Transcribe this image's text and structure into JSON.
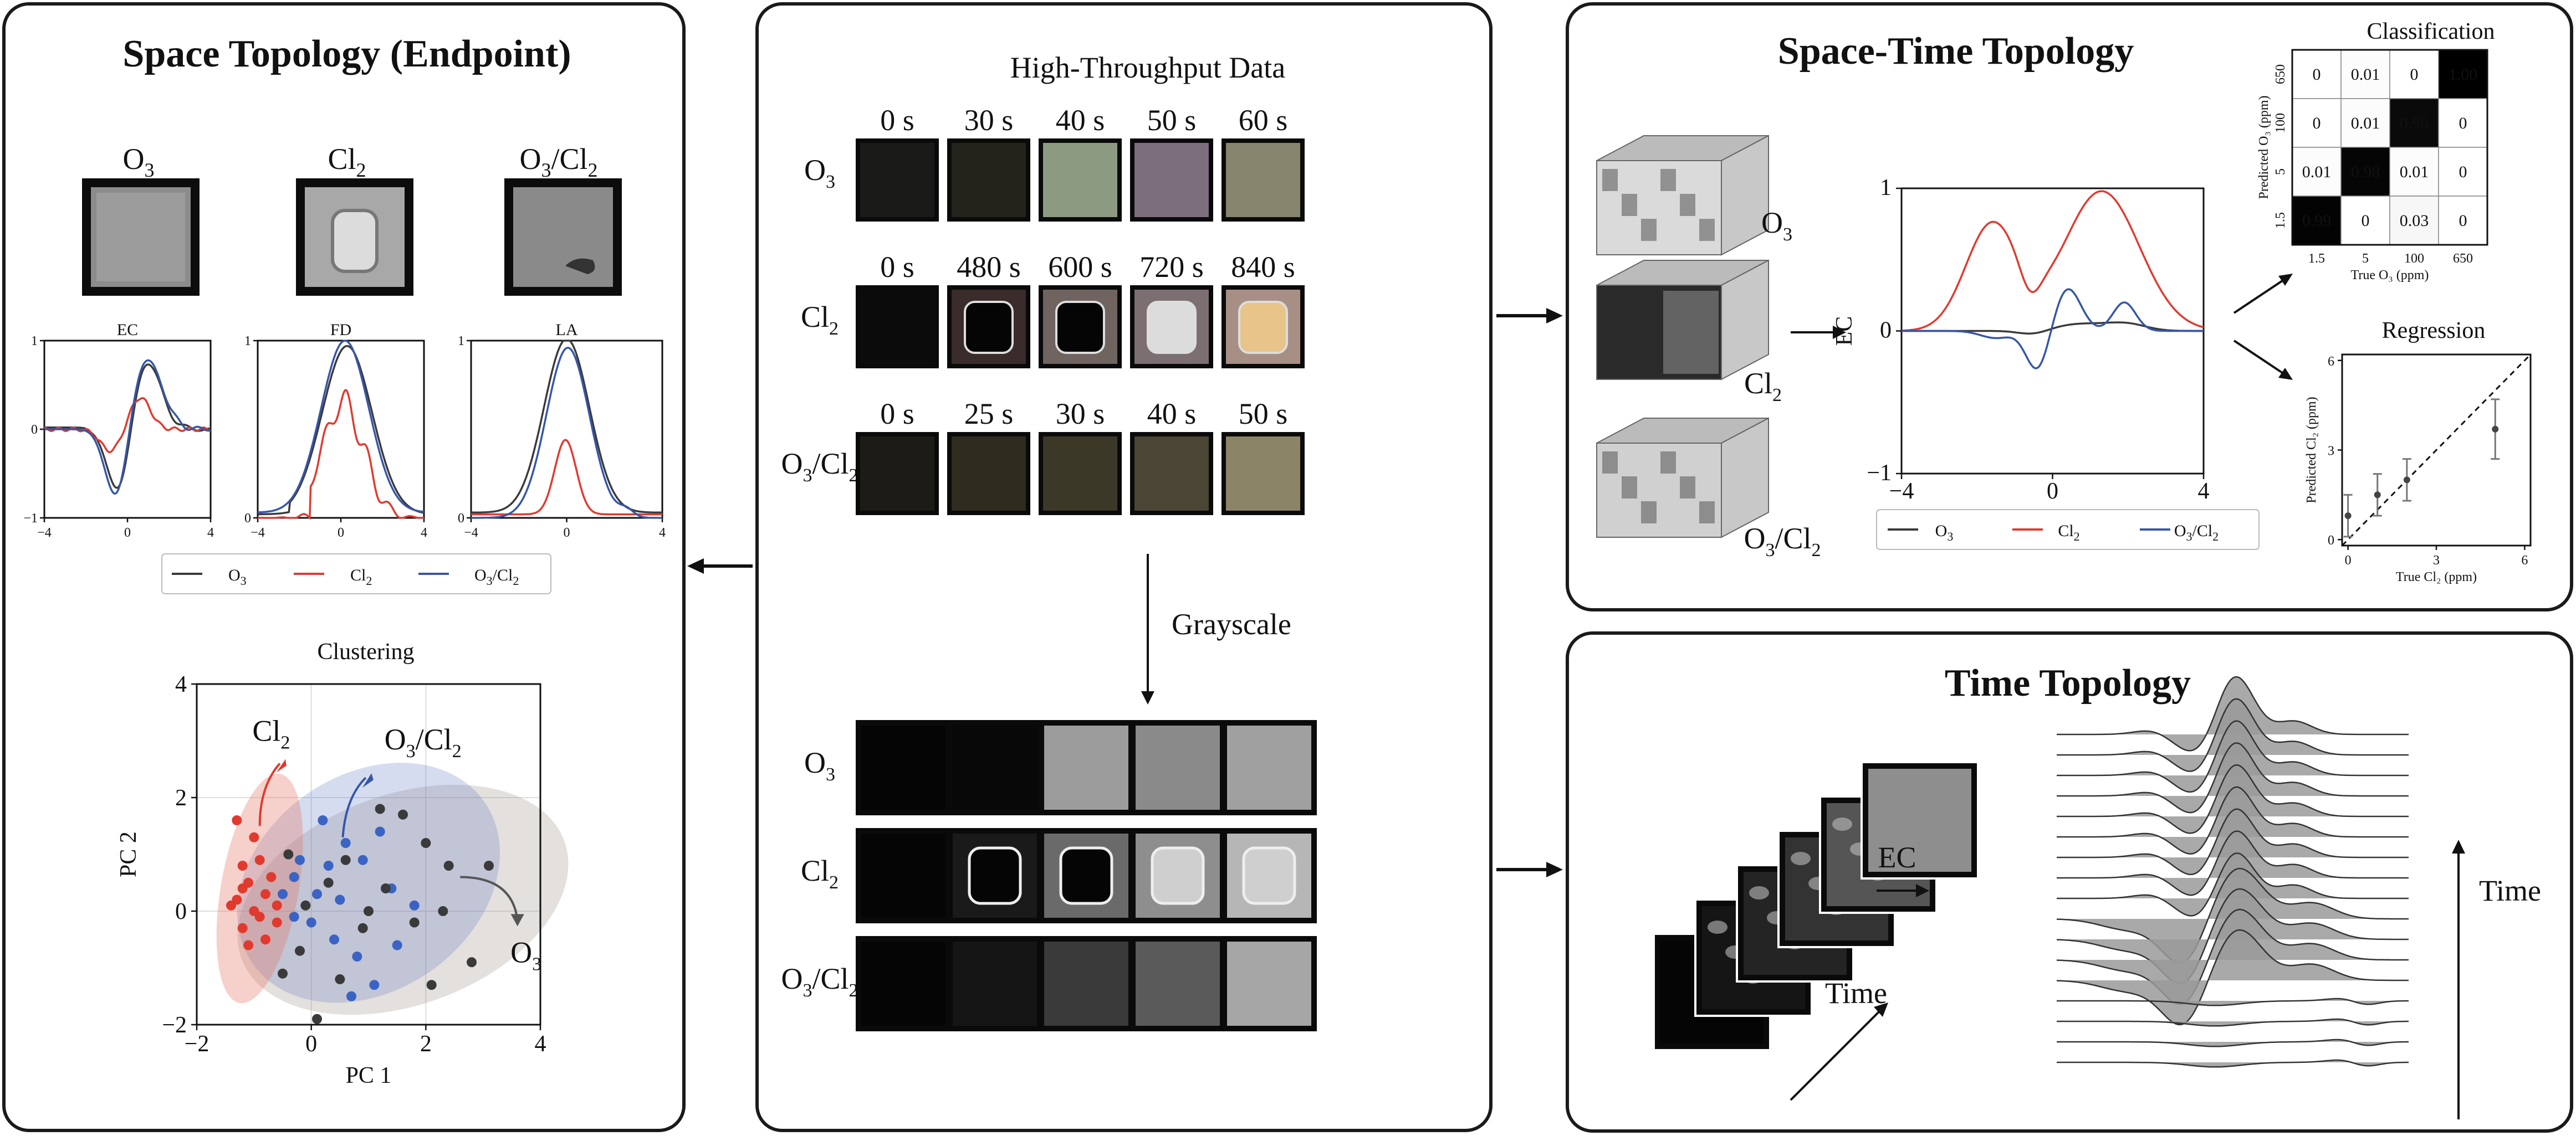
{
  "left_panel": {
    "title": "Space Topology (Endpoint)",
    "gas_labels": [
      {
        "base": "O",
        "sub": "3",
        "tail": "",
        "tail_sub": ""
      },
      {
        "base": "Cl",
        "sub": "2",
        "tail": "",
        "tail_sub": ""
      },
      {
        "base": "O",
        "sub": "3",
        "tail": "/Cl",
        "tail_sub": "2"
      }
    ],
    "curve_plots": [
      {
        "title": "EC",
        "ylim": [
          -1,
          1
        ],
        "yticks": [
          "1",
          "0",
          "−1"
        ]
      },
      {
        "title": "FD",
        "ylim": [
          0,
          1
        ],
        "yticks": [
          "1",
          "0"
        ]
      },
      {
        "title": "LA",
        "ylim": [
          0,
          1
        ],
        "yticks": [
          "1",
          "0"
        ]
      }
    ],
    "curve_xticks": [
      "−4",
      "0",
      "4"
    ],
    "legend": [
      {
        "label_base": "O",
        "label_sub": "3",
        "label_tail": "",
        "label_tail_sub": "",
        "color": "#3a3a3a"
      },
      {
        "label_base": "Cl",
        "label_sub": "2",
        "label_tail": "",
        "label_tail_sub": "",
        "color": "#e03a2f"
      },
      {
        "label_base": "O",
        "label_sub": "3",
        "label_tail": "/Cl",
        "label_tail_sub": "2",
        "color": "#3556a8"
      }
    ],
    "clustering": {
      "title": "Clustering",
      "xlabel": "PC 1",
      "ylabel": "PC 2",
      "xticks": [
        "−2",
        "0",
        "2",
        "4"
      ],
      "yticks": [
        "4",
        "2",
        "0",
        "−2"
      ],
      "xlim": [
        -2,
        4
      ],
      "ylim": [
        -2,
        4
      ],
      "group_labels": [
        {
          "base": "Cl",
          "sub": "2",
          "tail": "",
          "tail_sub": "",
          "color": "#e03a2f"
        },
        {
          "base": "O",
          "sub": "3",
          "tail": "/Cl",
          "tail_sub": "2",
          "color": "#3556a8"
        },
        {
          "base": "O",
          "sub": "3",
          "tail": "",
          "tail_sub": "",
          "color": "#555555"
        }
      ]
    }
  },
  "center_panel": {
    "title": "High-Throughput Data",
    "rows": [
      {
        "base": "O",
        "sub": "3",
        "tail": "",
        "tail_sub": "",
        "times": [
          "0 s",
          "30 s",
          "40 s",
          "50 s",
          "60 s"
        ]
      },
      {
        "base": "Cl",
        "sub": "2",
        "tail": "",
        "tail_sub": "",
        "times": [
          "0 s",
          "480 s",
          "600 s",
          "720 s",
          "840 s"
        ]
      },
      {
        "base": "O",
        "sub": "3",
        "tail": "/Cl",
        "tail_sub": "2",
        "times": [
          "0 s",
          "25 s",
          "30 s",
          "40 s",
          "50 s"
        ]
      }
    ],
    "arrow_label": "Grayscale"
  },
  "space_time_panel": {
    "title": "Space-Time Topology",
    "cube_labels": [
      {
        "base": "O",
        "sub": "3",
        "tail": "",
        "tail_sub": ""
      },
      {
        "base": "Cl",
        "sub": "2",
        "tail": "",
        "tail_sub": ""
      },
      {
        "base": "O",
        "sub": "3",
        "tail": "/Cl",
        "tail_sub": "2"
      }
    ],
    "ec_plot": {
      "ylabel": "EC",
      "xticks": [
        "−4",
        "0",
        "4"
      ],
      "yticks": [
        "1",
        "0",
        "−1"
      ]
    },
    "classification": {
      "title": "Classification",
      "xlabel": "True O₃ (ppm)",
      "ylabel": "Predicted O₃ (ppm)",
      "row_labels": [
        "650",
        "100",
        "5",
        "1.5"
      ],
      "col_labels": [
        "1.5",
        "5",
        "100",
        "650"
      ],
      "matrix": [
        [
          "0",
          "0.01",
          "0",
          "1.00"
        ],
        [
          "0",
          "0.01",
          "0.96",
          "0"
        ],
        [
          "0.01",
          "0.98",
          "0.01",
          "0"
        ],
        [
          "0.99",
          "0",
          "0.03",
          "0"
        ]
      ]
    },
    "regression": {
      "title": "Regression",
      "xlabel": "True Cl₂ (ppm)",
      "ylabel": "Predicted Cl₂ (ppm)",
      "xticks": [
        "0",
        "3",
        "6"
      ],
      "yticks": [
        "6",
        "3",
        "0"
      ]
    }
  },
  "time_panel": {
    "title": "Time Topology",
    "ec_label": "EC",
    "time_label_left": "Time",
    "time_label_right": "Time"
  },
  "colors": {
    "o3": "#3a3a3a",
    "cl2": "#e03a2f",
    "mix": "#3556a8"
  }
}
